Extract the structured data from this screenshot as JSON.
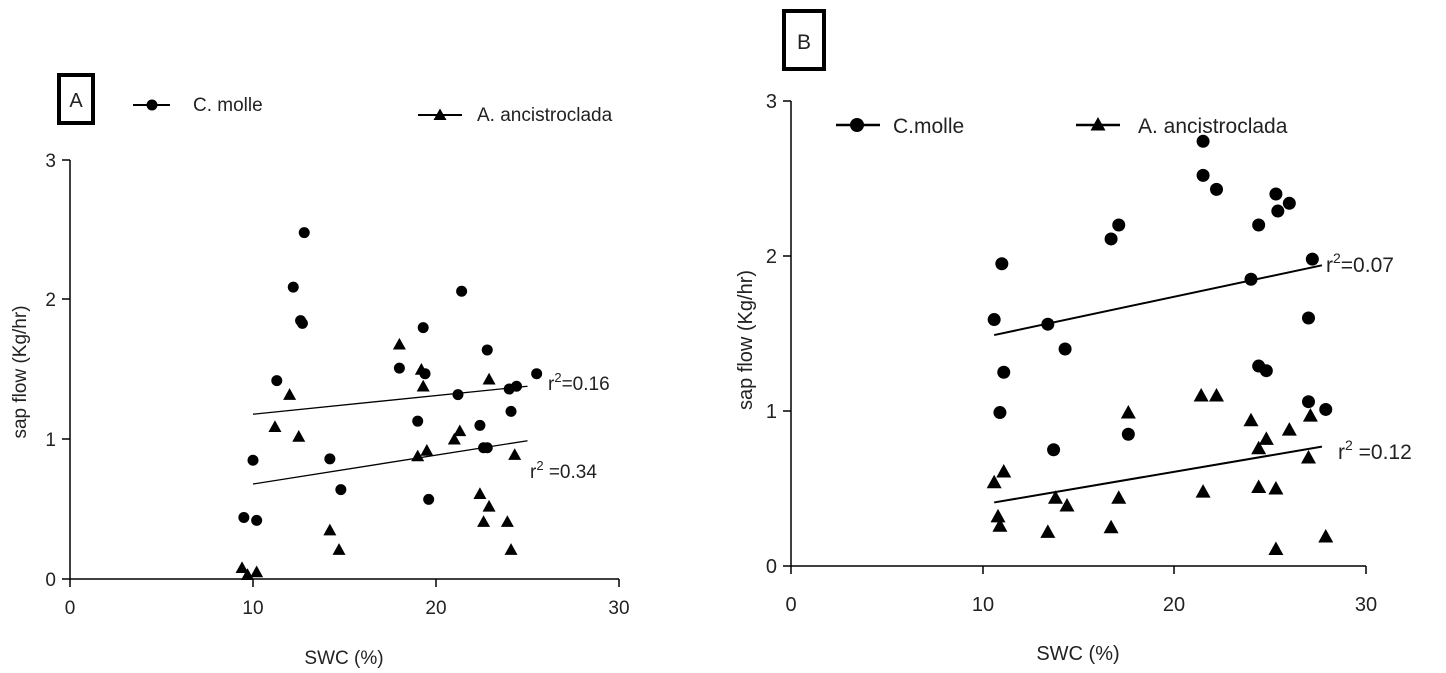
{
  "chart_data": [
    {
      "type": "scatter",
      "panel_label": "A",
      "xlabel": "SWC (%)",
      "ylabel": "sap flow (Kg/hr)",
      "xlim": [
        0,
        30
      ],
      "ylim": [
        0,
        3
      ],
      "x_ticks": [
        "0",
        "10",
        "20",
        "30"
      ],
      "y_ticks": [
        "0",
        "1",
        "2",
        "3"
      ],
      "grid": false,
      "series": [
        {
          "name": "C. molle",
          "marker": "circle",
          "points": [
            [
              9.5,
              0.44
            ],
            [
              10.0,
              0.85
            ],
            [
              10.2,
              0.42
            ],
            [
              11.3,
              1.42
            ],
            [
              12.2,
              2.09
            ],
            [
              12.6,
              1.85
            ],
            [
              12.8,
              2.48
            ],
            [
              12.7,
              1.83
            ],
            [
              14.2,
              0.86
            ],
            [
              14.8,
              0.64
            ],
            [
              18.0,
              1.51
            ],
            [
              19.0,
              1.13
            ],
            [
              19.3,
              1.8
            ],
            [
              19.4,
              1.47
            ],
            [
              19.6,
              0.57
            ],
            [
              21.2,
              1.32
            ],
            [
              21.4,
              2.06
            ],
            [
              22.4,
              1.1
            ],
            [
              22.6,
              0.94
            ],
            [
              22.8,
              1.64
            ],
            [
              22.8,
              0.94
            ],
            [
              24.0,
              1.36
            ],
            [
              24.1,
              1.2
            ],
            [
              24.4,
              1.38
            ],
            [
              25.5,
              1.47
            ]
          ],
          "fit": {
            "x": [
              10,
              25
            ],
            "y": [
              0.68,
              0.99
            ]
          },
          "r2_label": "r",
          "r2_sup": "2",
          "r2_value": " =0.34"
        },
        {
          "name": "A. ancistroclada",
          "marker": "triangle",
          "points": [
            [
              9.4,
              0.08
            ],
            [
              9.7,
              0.03
            ],
            [
              10.2,
              0.05
            ],
            [
              11.2,
              1.09
            ],
            [
              12.0,
              1.32
            ],
            [
              12.5,
              1.02
            ],
            [
              14.2,
              0.35
            ],
            [
              14.7,
              0.21
            ],
            [
              18.0,
              1.68
            ],
            [
              19.0,
              0.88
            ],
            [
              19.2,
              1.5
            ],
            [
              19.3,
              1.38
            ],
            [
              19.5,
              0.92
            ],
            [
              21.0,
              1.0
            ],
            [
              21.3,
              1.06
            ],
            [
              22.4,
              0.61
            ],
            [
              22.6,
              0.41
            ],
            [
              22.9,
              0.52
            ],
            [
              22.9,
              1.43
            ],
            [
              23.9,
              0.41
            ],
            [
              24.1,
              0.21
            ],
            [
              24.3,
              0.89
            ]
          ],
          "fit": {
            "x": [
              10,
              25
            ],
            "y": [
              1.18,
              1.38
            ]
          },
          "r2_label": "r",
          "r2_sup": "2",
          "r2_value": "=0.16"
        }
      ]
    },
    {
      "type": "scatter",
      "panel_label": "B",
      "xlabel": "SWC (%)",
      "ylabel": "sap flow (Kg/hr)",
      "xlim": [
        0,
        30
      ],
      "ylim": [
        0,
        3
      ],
      "x_ticks": [
        "0",
        "10",
        "20",
        "30"
      ],
      "y_ticks": [
        "0",
        "1",
        "2",
        "3"
      ],
      "grid": false,
      "series": [
        {
          "name": "C.molle",
          "marker": "circle",
          "points": [
            [
              10.6,
              1.59
            ],
            [
              10.9,
              0.99
            ],
            [
              11.0,
              1.95
            ],
            [
              11.1,
              1.25
            ],
            [
              13.4,
              1.56
            ],
            [
              13.7,
              0.75
            ],
            [
              14.3,
              1.4
            ],
            [
              16.7,
              2.11
            ],
            [
              17.1,
              2.2
            ],
            [
              17.6,
              0.85
            ],
            [
              21.5,
              2.52
            ],
            [
              21.5,
              2.74
            ],
            [
              22.2,
              2.43
            ],
            [
              24.0,
              1.85
            ],
            [
              24.4,
              2.2
            ],
            [
              24.4,
              1.29
            ],
            [
              24.8,
              1.26
            ],
            [
              25.3,
              2.4
            ],
            [
              25.4,
              2.29
            ],
            [
              26.0,
              2.34
            ],
            [
              27.0,
              1.6
            ],
            [
              27.0,
              1.06
            ],
            [
              27.2,
              1.98
            ],
            [
              27.9,
              1.01
            ]
          ],
          "fit": {
            "x": [
              10.6,
              27.7
            ],
            "y": [
              1.49,
              1.94
            ]
          },
          "r2_label": "r",
          "r2_sup": "2",
          "r2_value": "=0.07"
        },
        {
          "name": "A. ancistroclada",
          "marker": "triangle",
          "points": [
            [
              10.6,
              0.54
            ],
            [
              10.8,
              0.32
            ],
            [
              10.9,
              0.26
            ],
            [
              11.1,
              0.61
            ],
            [
              13.4,
              0.22
            ],
            [
              13.8,
              0.44
            ],
            [
              14.4,
              0.39
            ],
            [
              16.7,
              0.25
            ],
            [
              17.1,
              0.44
            ],
            [
              17.6,
              0.99
            ],
            [
              21.4,
              1.1
            ],
            [
              21.5,
              0.48
            ],
            [
              22.2,
              1.1
            ],
            [
              24.0,
              0.94
            ],
            [
              24.4,
              0.76
            ],
            [
              24.4,
              0.51
            ],
            [
              24.8,
              0.82
            ],
            [
              25.3,
              0.5
            ],
            [
              25.3,
              0.11
            ],
            [
              26.0,
              0.88
            ],
            [
              27.0,
              0.7
            ],
            [
              27.1,
              0.97
            ],
            [
              27.9,
              0.19
            ]
          ],
          "fit": {
            "x": [
              10.6,
              27.7
            ],
            "y": [
              0.41,
              0.77
            ]
          },
          "r2_label": "r",
          "r2_sup": "2",
          "r2_value": " =0.12"
        }
      ]
    }
  ]
}
